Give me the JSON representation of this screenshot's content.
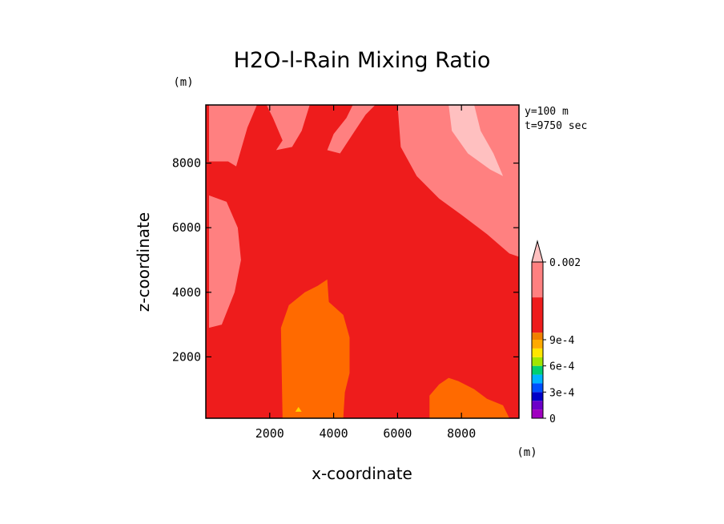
{
  "chart_data": {
    "type": "heatmap",
    "title": "H2O-l-Rain Mixing Ratio",
    "xlabel": "x-coordinate",
    "ylabel": "z-coordinate",
    "x_unit": "(m)",
    "y_unit": "(m)",
    "annotations": [
      "y=100 m",
      "t=9750 sec"
    ],
    "xlim": [
      0,
      9800
    ],
    "ylim": [
      100,
      9800
    ],
    "x_ticks": [
      2000,
      4000,
      6000,
      8000
    ],
    "y_ticks": [
      2000,
      4000,
      6000,
      8000
    ],
    "x_tick_labels": [
      "2000",
      "4000",
      "6000",
      "8000"
    ],
    "y_tick_labels": [
      "2000",
      "4000",
      "6000",
      "8000"
    ],
    "colorbar": {
      "levels": [
        0,
        0.0001,
        0.0002,
        0.0003,
        0.0004,
        0.0005,
        0.0006,
        0.0007,
        0.0008,
        0.0009,
        0.001,
        0.0015,
        0.002
      ],
      "colors": [
        "#a000c0",
        "#6c00c8",
        "#0000c8",
        "#0050ff",
        "#00b4ff",
        "#00d070",
        "#a0e600",
        "#ffe600",
        "#ffaa00",
        "#f08000",
        "#ee1c1c",
        "#ff8080",
        "#ffc0c0"
      ],
      "labels": [
        {
          "value": 0,
          "text": "0"
        },
        {
          "value": 0.0003,
          "text": "3e-4"
        },
        {
          "value": 0.0006,
          "text": "6e-4"
        },
        {
          "value": 0.0009,
          "text": "9e-4"
        },
        {
          "value": 0.002,
          "text": "0.002"
        }
      ],
      "extend": "max"
    },
    "field_colors": {
      "background": "#ee1c1c",
      "low": "#ff6a00",
      "mid_high": "#ff8080",
      "high": "#ffc0c0",
      "trace": "#ffd200"
    },
    "regions": [
      {
        "name": "low-region-left",
        "level": "low",
        "points": [
          [
            2400,
            100
          ],
          [
            2350,
            2900
          ],
          [
            2600,
            3600
          ],
          [
            3100,
            4000
          ],
          [
            3500,
            4200
          ],
          [
            3800,
            4400
          ],
          [
            3850,
            3700
          ],
          [
            4300,
            3300
          ],
          [
            4500,
            2600
          ],
          [
            4500,
            1500
          ],
          [
            4350,
            900
          ],
          [
            4300,
            100
          ]
        ]
      },
      {
        "name": "low-region-right",
        "level": "low",
        "points": [
          [
            7000,
            100
          ],
          [
            7000,
            800
          ],
          [
            7300,
            1150
          ],
          [
            7600,
            1350
          ],
          [
            7900,
            1250
          ],
          [
            8400,
            1000
          ],
          [
            8800,
            700
          ],
          [
            9300,
            500
          ],
          [
            9500,
            100
          ]
        ]
      },
      {
        "name": "high-band-top-left",
        "level": "mid_high",
        "points": [
          [
            100,
            9800
          ],
          [
            100,
            8050
          ],
          [
            700,
            8050
          ],
          [
            950,
            7900
          ],
          [
            1300,
            9100
          ],
          [
            1600,
            9800
          ]
        ]
      },
      {
        "name": "high-band-top-mid",
        "level": "mid_high",
        "points": [
          [
            1900,
            9800
          ],
          [
            2100,
            9400
          ],
          [
            2400,
            8700
          ],
          [
            2200,
            8400
          ],
          [
            2700,
            8500
          ],
          [
            3000,
            9000
          ],
          [
            3250,
            9800
          ]
        ]
      },
      {
        "name": "high-band-top-center",
        "level": "mid_high",
        "points": [
          [
            4600,
            9800
          ],
          [
            4400,
            9400
          ],
          [
            4000,
            8900
          ],
          [
            3800,
            8400
          ],
          [
            4200,
            8300
          ],
          [
            4600,
            8900
          ],
          [
            5000,
            9500
          ],
          [
            5300,
            9800
          ]
        ]
      },
      {
        "name": "high-band-right",
        "level": "mid_high",
        "points": [
          [
            6000,
            9800
          ],
          [
            6100,
            8500
          ],
          [
            6600,
            7600
          ],
          [
            7300,
            6900
          ],
          [
            8000,
            6400
          ],
          [
            8800,
            5800
          ],
          [
            9500,
            5200
          ],
          [
            9800,
            5100
          ],
          [
            9800,
            9800
          ]
        ]
      },
      {
        "name": "high-band-left-edge",
        "level": "mid_high",
        "points": [
          [
            100,
            7000
          ],
          [
            650,
            6800
          ],
          [
            1000,
            6000
          ],
          [
            1100,
            5000
          ],
          [
            900,
            4000
          ],
          [
            500,
            3000
          ],
          [
            100,
            2900
          ]
        ]
      },
      {
        "name": "peak-band-right",
        "level": "high",
        "points": [
          [
            7600,
            9800
          ],
          [
            7700,
            9000
          ],
          [
            8200,
            8300
          ],
          [
            8900,
            7800
          ],
          [
            9300,
            7600
          ],
          [
            9000,
            8300
          ],
          [
            8600,
            9000
          ],
          [
            8400,
            9800
          ]
        ]
      },
      {
        "name": "trace-spot",
        "level": "trace",
        "points": [
          [
            2800,
            300
          ],
          [
            3000,
            300
          ],
          [
            2900,
            450
          ]
        ]
      }
    ]
  }
}
